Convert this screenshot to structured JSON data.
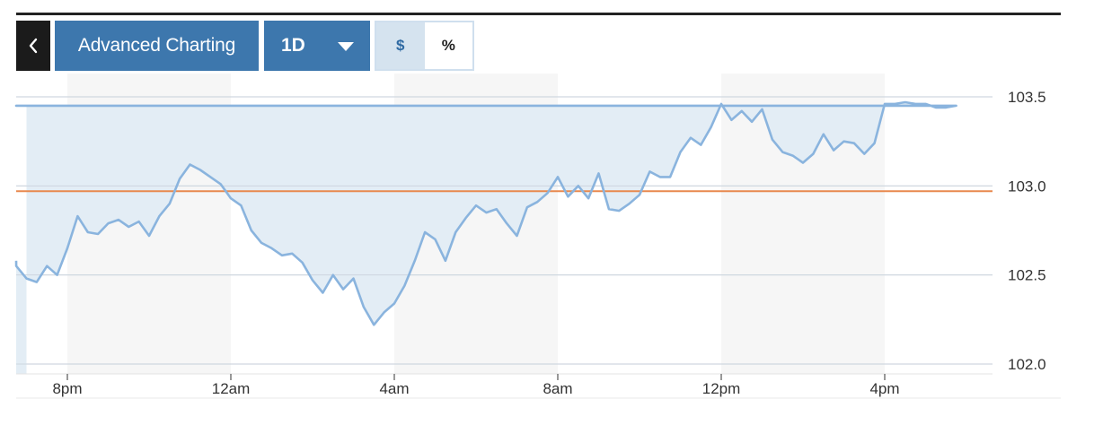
{
  "toolbar": {
    "back_icon": "chevron-left-icon",
    "advanced_label": "Advanced Charting",
    "period_label": "1D",
    "period_icon": "caret-down-icon",
    "currency_toggle": {
      "dollar": "$",
      "percent": "%",
      "active": "dollar"
    }
  },
  "colors": {
    "line": "#8ab4de",
    "area": "#e2ecf4",
    "reference_line": "#e8894f",
    "button": "#3d77ad",
    "shade_band": "#f6f6f6"
  },
  "chart_data": {
    "type": "area",
    "title": "",
    "xlabel": "",
    "ylabel": "",
    "ylim": [
      102.0,
      103.55
    ],
    "yaxis_position": "right",
    "xlim": [
      "18:35",
      "19:00+1d"
    ],
    "x_ticks": [
      "8pm",
      "12am",
      "4am",
      "8am",
      "12pm",
      "4pm"
    ],
    "y_ticks": [
      "102.0",
      "102.5",
      "103.0",
      "103.5"
    ],
    "reference_value": 102.97,
    "grid": "horizontal",
    "shaded_time_bands": [
      [
        "20:00",
        "00:00"
      ],
      [
        "04:00",
        "08:00"
      ],
      [
        "12:00",
        "16:00"
      ]
    ],
    "series": [
      {
        "x": [
          "18:35",
          "18:45",
          "19:00",
          "19:15",
          "19:30",
          "19:45",
          "20:00",
          "20:15",
          "20:30",
          "20:45",
          "21:00",
          "21:15",
          "21:30",
          "21:45",
          "22:00",
          "22:15",
          "22:30",
          "22:45",
          "23:00",
          "23:15",
          "23:30",
          "23:45",
          "00:00",
          "00:15",
          "00:30",
          "00:45",
          "01:00",
          "01:15",
          "01:30",
          "01:45",
          "02:00",
          "02:15",
          "02:30",
          "02:45",
          "03:00",
          "03:15",
          "03:30",
          "03:45",
          "04:00",
          "04:15",
          "04:30",
          "04:45",
          "05:00",
          "05:15",
          "05:30",
          "05:45",
          "06:00",
          "06:15",
          "06:30",
          "06:45",
          "07:00",
          "07:15",
          "07:30",
          "07:45",
          "08:00",
          "08:15",
          "08:30",
          "08:45",
          "09:00",
          "09:15",
          "09:30",
          "09:45",
          "10:00",
          "10:15",
          "10:30",
          "10:45",
          "11:00",
          "11:15",
          "11:30",
          "11:45",
          "12:00",
          "12:15",
          "12:30",
          "12:45",
          "13:00",
          "13:15",
          "13:30",
          "13:45",
          "14:00",
          "14:15",
          "14:30",
          "14:45",
          "15:00",
          "15:15",
          "15:30",
          "15:45",
          "16:00",
          "16:15",
          "16:30",
          "16:45",
          "17:00",
          "17:15",
          "17:30",
          "17:45",
          "18:00",
          "18:15",
          "18:30",
          "18:45",
          "19:00"
        ],
        "y": [
          102.58,
          102.55,
          102.48,
          102.46,
          102.55,
          102.5,
          102.65,
          102.83,
          102.74,
          102.73,
          102.79,
          102.81,
          102.77,
          102.8,
          102.72,
          102.83,
          102.9,
          103.04,
          103.12,
          103.09,
          103.05,
          103.01,
          102.93,
          102.89,
          102.75,
          102.68,
          102.65,
          102.61,
          102.62,
          102.57,
          102.47,
          102.4,
          102.5,
          102.42,
          102.48,
          102.32,
          102.22,
          102.29,
          102.34,
          102.44,
          102.58,
          102.74,
          102.7,
          102.58,
          102.74,
          102.82,
          102.89,
          102.85,
          102.87,
          102.79,
          102.72,
          102.88,
          102.91,
          102.96,
          103.05,
          102.94,
          103.0,
          102.93,
          103.07,
          102.87,
          102.86,
          102.9,
          102.95,
          103.08,
          103.05,
          103.05,
          103.19,
          103.27,
          103.23,
          103.33,
          103.46,
          103.37,
          103.42,
          103.36,
          103.43,
          103.26,
          103.19,
          103.17,
          103.13,
          103.18,
          103.29,
          103.2,
          103.25,
          103.24,
          103.18,
          103.24,
          103.46,
          103.46,
          103.47,
          103.46,
          103.46,
          103.44,
          103.44,
          103.45,
          103.45,
          103.45,
          103.45,
          103.45,
          103.45
        ]
      }
    ]
  }
}
